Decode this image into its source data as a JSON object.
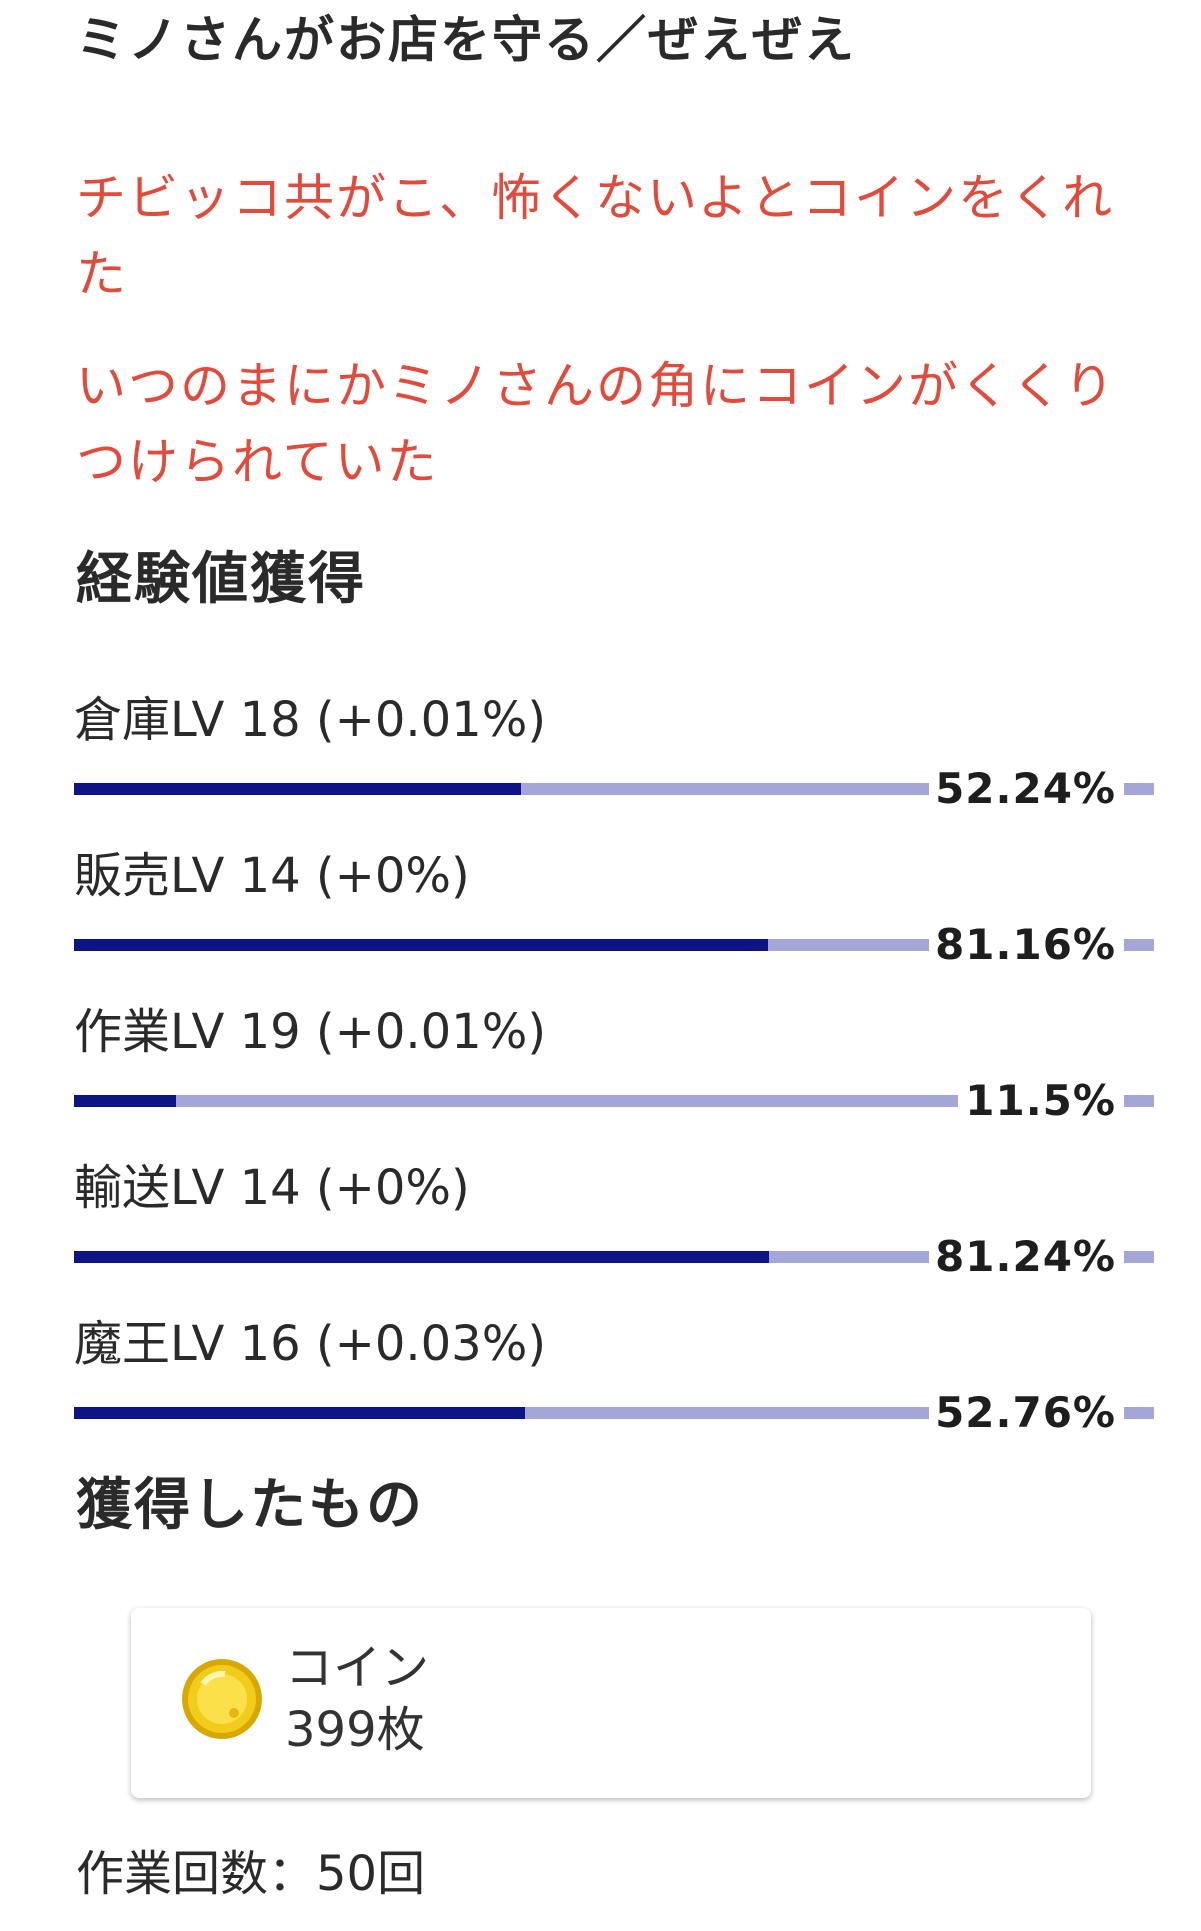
{
  "title": "ミノさんがお店を守る／ぜえぜえ",
  "messages": [
    "チビッコ共がこ、怖くないよとコインをくれた",
    "いつのまにかミノさんの角にコインがくくりつけられていた"
  ],
  "exp_heading": "経験値獲得",
  "skills": [
    {
      "label": "倉庫LV 18 (+0.01%)",
      "percent_text": "52.24%",
      "progress": 0.5224
    },
    {
      "label": "販売LV 14 (+0%)",
      "percent_text": "81.16%",
      "progress": 0.8116
    },
    {
      "label": "作業LV 19 (+0.01%)",
      "percent_text": "11.5%",
      "progress": 0.115
    },
    {
      "label": "輸送LV 14 (+0%)",
      "percent_text": "81.24%",
      "progress": 0.8124
    },
    {
      "label": "魔王LV 16 (+0.03%)",
      "percent_text": "52.76%",
      "progress": 0.5276
    }
  ],
  "loot_heading": "獲得したもの",
  "loot_item": {
    "icon": "gold-coin-icon",
    "name": "コイン",
    "count": "399枚"
  },
  "work_count": "作業回数：50回",
  "colors": {
    "message": "#e24b3c",
    "bar_fill": "#0e1386",
    "bar_track": "#a5a6d8"
  }
}
